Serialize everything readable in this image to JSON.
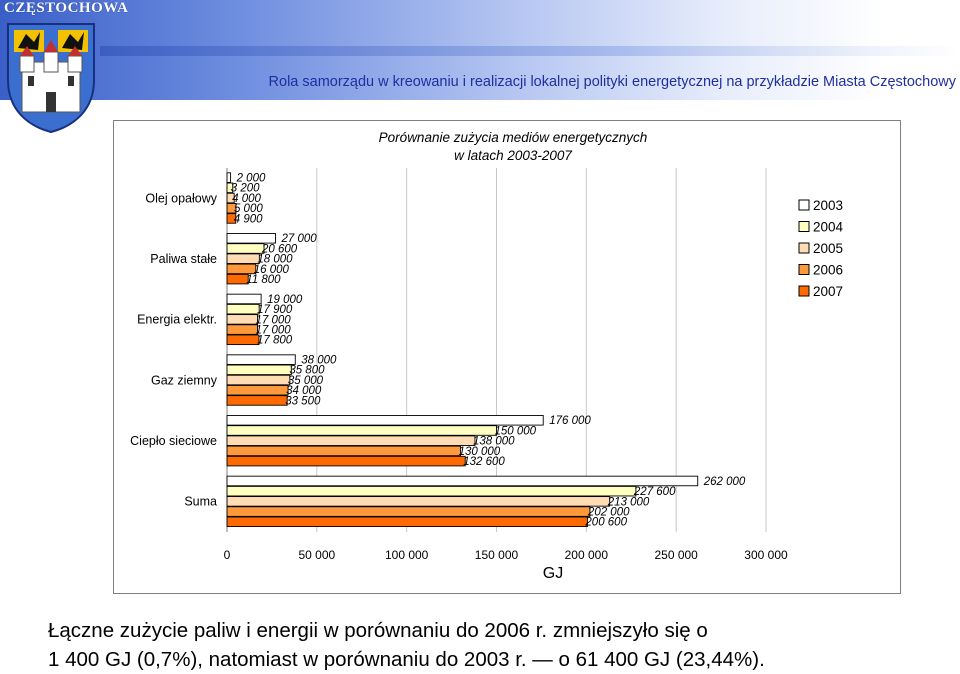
{
  "header": {
    "logo_text": "CZĘSTOCHOWA",
    "subtitle": "Rola samorządu w kreowaniu i realizacji lokalnej polityki energetycznej na przykładzie Miasta Częstochowy"
  },
  "chart_data": {
    "type": "bar",
    "orientation": "horizontal",
    "title_line1": "Porównanie zużycia mediów energetycznych",
    "title_line2": "w latach 2003-2007",
    "categories": [
      "Olej opałowy",
      "Paliwa stałe",
      "Energia elektr.",
      "Gaz ziemny",
      "Ciepło sieciowe",
      "Suma"
    ],
    "series": [
      {
        "name": "2003",
        "color": "#ffffff",
        "values": [
          2000,
          27000,
          19000,
          38000,
          176000,
          262000
        ],
        "labels": [
          "2 000",
          "27 000",
          "19 000",
          "38 000",
          "176 000",
          "262 000"
        ]
      },
      {
        "name": "2004",
        "color": "#ffffc0",
        "values": [
          3200,
          20600,
          17900,
          35800,
          150000,
          227600
        ],
        "labels": [
          "3 200",
          "20 600",
          "17 900",
          "35 800",
          "150 000",
          "227 600"
        ]
      },
      {
        "name": "2005",
        "color": "#ffdcb4",
        "values": [
          4000,
          18000,
          17000,
          35000,
          138000,
          213000
        ],
        "labels": [
          "4 000",
          "18 000",
          "17 000",
          "35 000",
          "138 000",
          "213 000"
        ]
      },
      {
        "name": "2006",
        "color": "#ff9a3c",
        "values": [
          5000,
          16000,
          17000,
          34000,
          130000,
          202000
        ],
        "labels": [
          "5 000",
          "16 000",
          "17 000",
          "34 000",
          "130 000",
          "202 000"
        ]
      },
      {
        "name": "2007",
        "color": "#ff6a00",
        "values": [
          4900,
          11800,
          17800,
          33500,
          132600,
          200600
        ],
        "labels": [
          "4 900",
          "11 800",
          "17 800",
          "33 500",
          "132 600",
          "200 600"
        ]
      }
    ],
    "xlabel": "GJ",
    "xlim": [
      0,
      300000
    ],
    "xticks": [
      0,
      50000,
      100000,
      150000,
      200000,
      250000,
      300000
    ],
    "xtick_labels": [
      "0",
      "50 000",
      "100 000",
      "150 000",
      "200 000",
      "250 000",
      "300 000"
    ],
    "grid": "vertical",
    "legend": "top-right"
  },
  "caption": {
    "line1": "Łączne zużycie paliw i energii w porównaniu do 2006 r. zmniejszyło się o",
    "line2": "1 400 GJ (0,7%), natomiast w porównaniu do 2003 r. — o 61 400 GJ (23,44%)."
  }
}
